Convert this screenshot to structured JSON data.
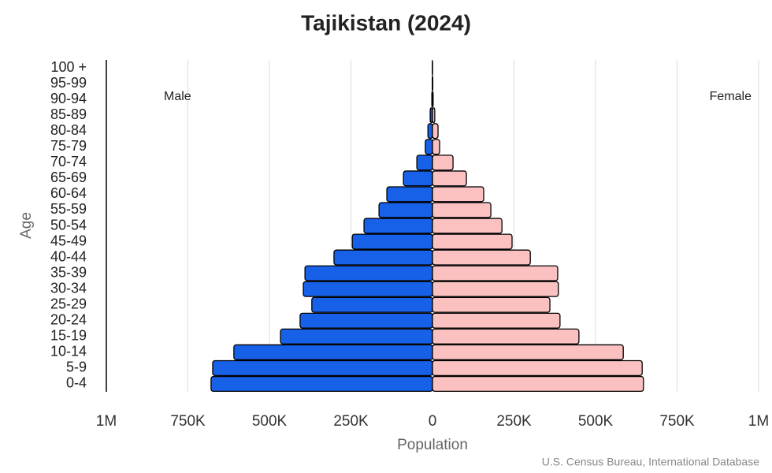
{
  "chart_data": {
    "type": "population-pyramid",
    "title": "Tajikistan (2024)",
    "x_label": "Population",
    "y_label": "Age",
    "source": "U.S. Census Bureau, International Database",
    "categories": [
      "0-4",
      "5-9",
      "10-14",
      "15-19",
      "20-24",
      "25-29",
      "30-34",
      "35-39",
      "40-44",
      "45-49",
      "50-54",
      "55-59",
      "60-64",
      "65-69",
      "70-74",
      "75-79",
      "80-84",
      "85-89",
      "90-94",
      "95-99",
      "100 +"
    ],
    "series": [
      {
        "name": "Male",
        "color": "#1760e8",
        "values": [
          -679000,
          -674000,
          -609000,
          -466000,
          -406000,
          -370000,
          -396000,
          -391000,
          -302000,
          -246000,
          -210000,
          -164000,
          -140000,
          -89000,
          -48000,
          -22000,
          -14000,
          -7000,
          -2000,
          -500,
          -200
        ]
      },
      {
        "name": "Female",
        "color": "#fbc1c1",
        "values": [
          647000,
          643000,
          585000,
          449000,
          391000,
          360000,
          386000,
          384000,
          300000,
          244000,
          213000,
          179000,
          157000,
          104000,
          63000,
          22000,
          17000,
          7000,
          2000,
          1000,
          300
        ]
      }
    ],
    "xlim": [
      -1000000,
      1000000
    ],
    "xticks": [
      {
        "value": -1000000,
        "label": "1M"
      },
      {
        "value": -750000,
        "label": "750K"
      },
      {
        "value": -500000,
        "label": "500K"
      },
      {
        "value": -250000,
        "label": "250K"
      },
      0,
      {
        "value": 250000,
        "label": "250K"
      },
      {
        "value": 500000,
        "label": "500K"
      },
      {
        "value": 750000,
        "label": "750K"
      },
      {
        "value": 1000000,
        "label": "1M"
      }
    ],
    "grid": true
  }
}
